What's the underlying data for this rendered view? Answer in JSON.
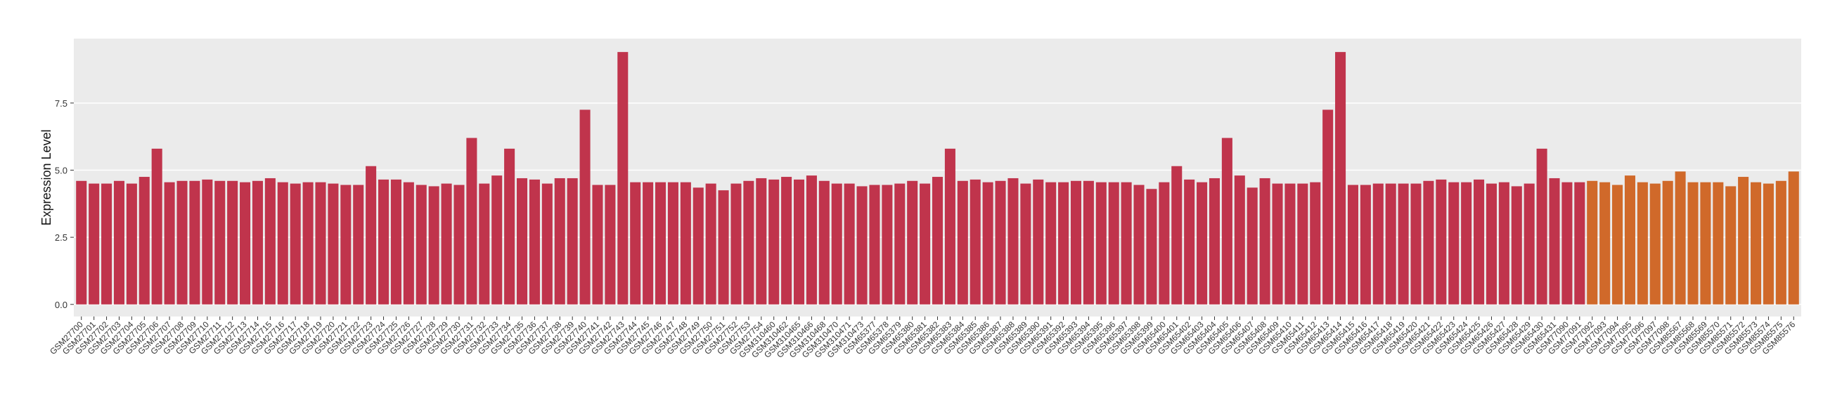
{
  "chart_data": {
    "type": "bar",
    "y_label": "Expression Level",
    "categories": [
      "GSM27700",
      "GSM27701",
      "GSM27702",
      "GSM27703",
      "GSM27704",
      "GSM27705",
      "GSM27706",
      "GSM27707",
      "GSM27708",
      "GSM27709",
      "GSM27710",
      "GSM27711",
      "GSM27712",
      "GSM27713",
      "GSM27714",
      "GSM27715",
      "GSM27716",
      "GSM27717",
      "GSM27718",
      "GSM27719",
      "GSM27720",
      "GSM27721",
      "GSM27722",
      "GSM27723",
      "GSM27724",
      "GSM27725",
      "GSM27726",
      "GSM27727",
      "GSM27728",
      "GSM27729",
      "GSM27730",
      "GSM27731",
      "GSM27732",
      "GSM27733",
      "GSM27734",
      "GSM27735",
      "GSM27736",
      "GSM27737",
      "GSM27738",
      "GSM27739",
      "GSM27740",
      "GSM27741",
      "GSM27742",
      "GSM27743",
      "GSM27744",
      "GSM27745",
      "GSM27746",
      "GSM27747",
      "GSM27748",
      "GSM27749",
      "GSM27750",
      "GSM27751",
      "GSM27752",
      "GSM27753",
      "GSM27754",
      "GSM310460",
      "GSM310462",
      "GSM310465",
      "GSM310466",
      "GSM310468",
      "GSM310470",
      "GSM310471",
      "GSM310473",
      "GSM65377",
      "GSM65378",
      "GSM65379",
      "GSM65380",
      "GSM65381",
      "GSM65382",
      "GSM65383",
      "GSM65384",
      "GSM65385",
      "GSM65386",
      "GSM65387",
      "GSM65388",
      "GSM65389",
      "GSM65390",
      "GSM65391",
      "GSM65392",
      "GSM65393",
      "GSM65394",
      "GSM65395",
      "GSM65396",
      "GSM65397",
      "GSM65398",
      "GSM65399",
      "GSM65400",
      "GSM65401",
      "GSM65402",
      "GSM65403",
      "GSM65404",
      "GSM65405",
      "GSM65406",
      "GSM65407",
      "GSM65408",
      "GSM65409",
      "GSM65410",
      "GSM65411",
      "GSM65412",
      "GSM65413",
      "GSM65414",
      "GSM65415",
      "GSM65416",
      "GSM65417",
      "GSM65418",
      "GSM65419",
      "GSM65420",
      "GSM65421",
      "GSM65422",
      "GSM65423",
      "GSM65424",
      "GSM65425",
      "GSM65426",
      "GSM65427",
      "GSM65428",
      "GSM65429",
      "GSM65430",
      "GSM65431",
      "GSM77090",
      "GSM77091",
      "GSM77092",
      "GSM77093",
      "GSM77094",
      "GSM77095",
      "GSM77096",
      "GSM77097",
      "GSM77098",
      "GSM85567",
      "GSM85568",
      "GSM85569",
      "GSM85570",
      "GSM85571",
      "GSM85572",
      "GSM85573",
      "GSM85574",
      "GSM85575",
      "GSM85576"
    ],
    "values": [
      4.6,
      4.5,
      4.5,
      4.6,
      4.5,
      4.75,
      5.8,
      4.55,
      4.6,
      4.6,
      4.65,
      4.6,
      4.6,
      4.55,
      4.6,
      4.7,
      4.55,
      4.5,
      4.55,
      4.55,
      4.5,
      4.45,
      4.45,
      5.15,
      4.65,
      4.65,
      4.55,
      4.45,
      4.4,
      4.5,
      4.45,
      6.2,
      4.5,
      4.8,
      5.8,
      4.7,
      4.65,
      4.5,
      4.7,
      4.7,
      7.25,
      4.45,
      4.45,
      9.4,
      4.55,
      4.55,
      4.55,
      4.55,
      4.55,
      4.35,
      4.5,
      4.25,
      4.5,
      4.6,
      4.7,
      4.65,
      4.75,
      4.65,
      4.8,
      4.6,
      4.5,
      4.5,
      4.4,
      4.45,
      4.45,
      4.5,
      4.6,
      4.5,
      4.75,
      5.8,
      4.6,
      4.65,
      4.55,
      4.6,
      4.7,
      4.5,
      4.65,
      4.55,
      4.55,
      4.6,
      4.6,
      4.55,
      4.55,
      4.55,
      4.45,
      4.3,
      4.55,
      5.15,
      4.65,
      4.55,
      4.7,
      6.2,
      4.8,
      4.35,
      4.7,
      4.5,
      4.5,
      4.5,
      4.55,
      7.25,
      9.4,
      4.45,
      4.45,
      4.5,
      4.5,
      4.5,
      4.5,
      4.6,
      4.65,
      4.55,
      4.55,
      4.65,
      4.5,
      4.55,
      4.4,
      4.5,
      5.8,
      4.7,
      4.55,
      4.55,
      4.6,
      4.55,
      4.45,
      4.8,
      4.55,
      4.5,
      4.6,
      4.95,
      4.55,
      4.55,
      4.55,
      4.4,
      4.75,
      4.55,
      4.5,
      4.6,
      4.95
    ],
    "colors": [
      "#c0344c",
      "#c0344c",
      "#c0344c",
      "#c0344c",
      "#c0344c",
      "#c0344c",
      "#c0344c",
      "#c0344c",
      "#c0344c",
      "#c0344c",
      "#c0344c",
      "#c0344c",
      "#c0344c",
      "#c0344c",
      "#c0344c",
      "#c0344c",
      "#c0344c",
      "#c0344c",
      "#c0344c",
      "#c0344c",
      "#c0344c",
      "#c0344c",
      "#c0344c",
      "#c0344c",
      "#c0344c",
      "#c0344c",
      "#c0344c",
      "#c0344c",
      "#c0344c",
      "#c0344c",
      "#c0344c",
      "#c0344c",
      "#c0344c",
      "#c0344c",
      "#c0344c",
      "#c0344c",
      "#c0344c",
      "#c0344c",
      "#c0344c",
      "#c0344c",
      "#c0344c",
      "#c0344c",
      "#c0344c",
      "#c0344c",
      "#c0344c",
      "#c0344c",
      "#c0344c",
      "#c0344c",
      "#c0344c",
      "#c0344c",
      "#c0344c",
      "#c0344c",
      "#c0344c",
      "#c0344c",
      "#c0344c",
      "#c0344c",
      "#c0344c",
      "#c0344c",
      "#c0344c",
      "#c0344c",
      "#c0344c",
      "#c0344c",
      "#c0344c",
      "#c0344c",
      "#c0344c",
      "#c0344c",
      "#c0344c",
      "#c0344c",
      "#c0344c",
      "#c0344c",
      "#c0344c",
      "#c0344c",
      "#c0344c",
      "#c0344c",
      "#c0344c",
      "#c0344c",
      "#c0344c",
      "#c0344c",
      "#c0344c",
      "#c0344c",
      "#c0344c",
      "#c0344c",
      "#c0344c",
      "#c0344c",
      "#c0344c",
      "#c0344c",
      "#c0344c",
      "#c0344c",
      "#c0344c",
      "#c0344c",
      "#c0344c",
      "#c0344c",
      "#c0344c",
      "#c0344c",
      "#c0344c",
      "#c0344c",
      "#c0344c",
      "#c0344c",
      "#c0344c",
      "#c0344c",
      "#c0344c",
      "#c0344c",
      "#c0344c",
      "#c0344c",
      "#c0344c",
      "#c0344c",
      "#c0344c",
      "#c0344c",
      "#c0344c",
      "#c0344c",
      "#c0344c",
      "#c0344c",
      "#c0344c",
      "#c0344c",
      "#c0344c",
      "#c0344c",
      "#c0344c",
      "#c0344c",
      "#c0344c",
      "#c0344c",
      "#d0692a",
      "#d0692a",
      "#d0692a",
      "#d0692a",
      "#d0692a",
      "#d0692a",
      "#d0692a",
      "#d0692a",
      "#d0692a",
      "#d0692a",
      "#d0692a",
      "#d0692a",
      "#d0692a",
      "#d0692a",
      "#d0692a",
      "#d0692a",
      "#d0692a",
      "#d0692a",
      "#d0692a"
    ],
    "ylim": [
      -0.45,
      9.9
    ],
    "yticks": [
      {
        "value": 0,
        "label": "0.0"
      },
      2.5,
      {
        "value": 5,
        "label": "5.0"
      },
      7.5
    ],
    "grid": true
  }
}
